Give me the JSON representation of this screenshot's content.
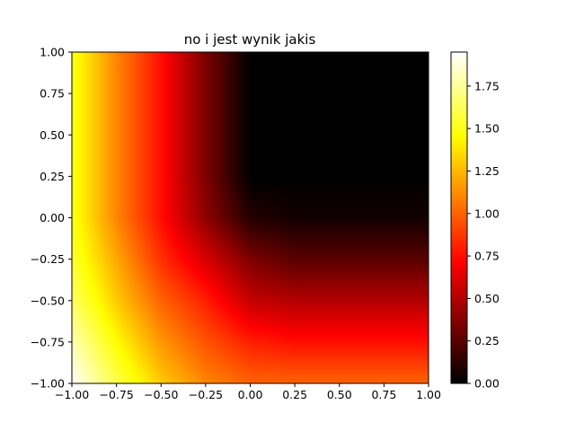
{
  "chart_data": {
    "type": "heatmap",
    "title": "no i jest wynik jakis",
    "xlabel": "",
    "ylabel": "",
    "xlim": [
      -1.0,
      1.0
    ],
    "ylim": [
      -1.0,
      1.0
    ],
    "x_ticks": [
      "−1.00",
      "−0.75",
      "−0.50",
      "−0.25",
      "0.00",
      "0.25",
      "0.50",
      "0.75",
      "1.00"
    ],
    "y_ticks": [
      "−1.00",
      "−0.75",
      "−0.50",
      "−0.25",
      "0.00",
      "0.25",
      "0.50",
      "0.75",
      "1.00"
    ],
    "x_tick_values": [
      -1.0,
      -0.75,
      -0.5,
      -0.25,
      0.0,
      0.25,
      0.5,
      0.75,
      1.0
    ],
    "y_tick_values": [
      -1.0,
      -0.75,
      -0.5,
      -0.25,
      0.0,
      0.25,
      0.5,
      0.75,
      1.0
    ],
    "colormap": "hot",
    "colorbar": {
      "range": [
        0.0,
        1.95
      ],
      "ticks": [
        "0.00",
        "0.25",
        "0.50",
        "0.75",
        "1.00",
        "1.25",
        "1.50",
        "1.75"
      ],
      "tick_values": [
        0.0,
        0.25,
        0.5,
        0.75,
        1.0,
        1.25,
        1.5,
        1.75
      ]
    },
    "grid": false,
    "z_samples": {
      "x": [
        -1.0,
        -0.75,
        -0.5,
        -0.25,
        0.0,
        0.25,
        0.5,
        0.75,
        1.0
      ],
      "y": [
        1.0,
        0.75,
        0.5,
        0.25,
        0.0,
        -0.25,
        -0.5,
        -0.75,
        -1.0
      ],
      "values": [
        [
          1.5,
          1.1,
          0.75,
          0.35,
          0.0,
          0.0,
          0.0,
          0.0,
          0.0
        ],
        [
          1.5,
          1.1,
          0.75,
          0.35,
          0.0,
          0.0,
          0.0,
          0.0,
          0.0
        ],
        [
          1.5,
          1.1,
          0.75,
          0.35,
          0.0,
          0.0,
          0.0,
          0.0,
          0.0
        ],
        [
          1.5,
          1.1,
          0.75,
          0.35,
          0.0,
          0.0,
          0.0,
          0.0,
          0.0
        ],
        [
          1.5,
          1.1,
          0.75,
          0.4,
          0.1,
          0.05,
          0.05,
          0.05,
          0.05
        ],
        [
          1.55,
          1.2,
          0.85,
          0.6,
          0.35,
          0.25,
          0.25,
          0.25,
          0.25
        ],
        [
          1.65,
          1.3,
          1.0,
          0.8,
          0.55,
          0.5,
          0.5,
          0.5,
          0.5
        ],
        [
          1.8,
          1.45,
          1.15,
          0.95,
          0.8,
          0.75,
          0.75,
          0.75,
          0.75
        ],
        [
          1.95,
          1.6,
          1.3,
          1.1,
          1.0,
          1.0,
          1.0,
          1.0,
          1.0
        ]
      ]
    }
  }
}
